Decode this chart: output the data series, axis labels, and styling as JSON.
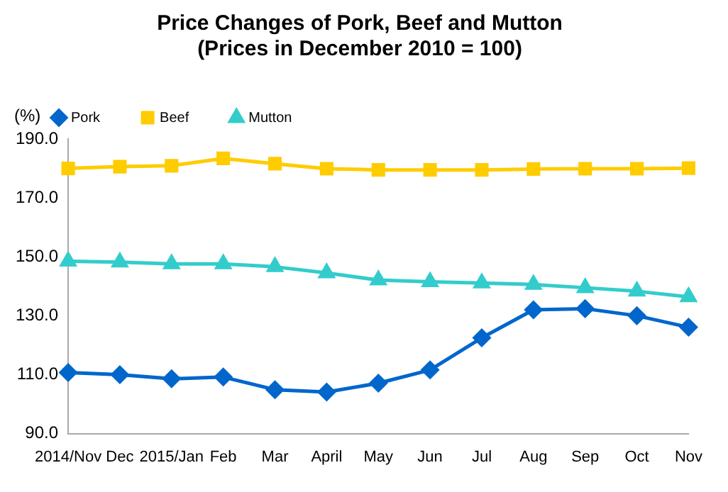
{
  "chart_data": {
    "type": "line",
    "title": "Price Changes of Pork, Beef and Mutton",
    "subtitle": "(Prices in December 2010 = 100)",
    "ylabel": "(%)",
    "categories": [
      "2014/Nov",
      "Dec",
      "2015/Jan",
      "Feb",
      "Mar",
      "April",
      "May",
      "Jun",
      "Jul",
      "Aug",
      "Sep",
      "Oct",
      "Nov"
    ],
    "series": [
      {
        "name": "Pork",
        "color": "#0066cc",
        "marker": "diamond",
        "values": [
          110.7,
          110.0,
          108.6,
          109.2,
          104.9,
          104.1,
          107.1,
          111.6,
          122.5,
          132.0,
          132.4,
          130.0,
          126.1
        ]
      },
      {
        "name": "Beef",
        "color": "#ffcc00",
        "marker": "square",
        "values": [
          180.0,
          180.6,
          180.9,
          183.4,
          181.6,
          179.9,
          179.5,
          179.5,
          179.5,
          179.8,
          179.9,
          179.9,
          180.1
        ]
      },
      {
        "name": "Mutton",
        "color": "#33cccc",
        "marker": "triangle",
        "values": [
          148.5,
          148.2,
          147.6,
          147.6,
          146.6,
          144.5,
          142.1,
          141.5,
          141.1,
          140.6,
          139.5,
          138.3,
          136.4
        ]
      }
    ],
    "ylim": [
      90,
      190
    ],
    "yticks": [
      {
        "value": 90,
        "label": "90.0"
      },
      {
        "value": 110,
        "label": "110.0"
      },
      {
        "value": 130,
        "label": "130.0"
      },
      {
        "value": 150,
        "label": "150.0"
      },
      {
        "value": 170,
        "label": "170.0"
      },
      {
        "value": 190,
        "label": "190.0"
      }
    ],
    "grid": false,
    "legend": "top left",
    "line_style": "solid"
  }
}
